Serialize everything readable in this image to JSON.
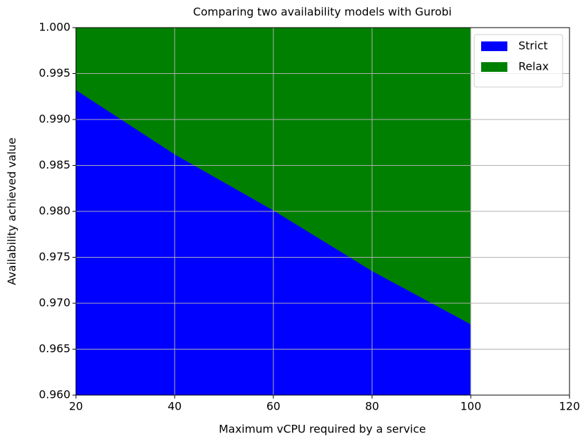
{
  "chart_data": {
    "type": "area",
    "title": "Comparing two availability models with Gurobi",
    "xlabel": "Maximum vCPU required by a service",
    "ylabel": "Availability achieved value",
    "x": [
      20,
      40,
      60,
      80,
      100
    ],
    "series": [
      {
        "name": "Strict",
        "color": "#0000ff",
        "values": [
          0.9932,
          0.9862,
          0.9801,
          0.9735,
          0.9677
        ]
      },
      {
        "name": "Relax",
        "color": "#008000",
        "values": [
          1.0,
          1.0,
          1.0,
          1.0,
          1.0
        ]
      }
    ],
    "xlim": [
      20,
      120
    ],
    "xticks": [
      20,
      40,
      60,
      80,
      100,
      120
    ],
    "ylim": [
      0.96,
      1.0
    ],
    "yticks": [
      {
        "value": 0.96,
        "label": "0.960"
      },
      {
        "value": 0.965,
        "label": "0.965"
      },
      {
        "value": 0.97,
        "label": "0.970"
      },
      {
        "value": 0.975,
        "label": "0.975"
      },
      {
        "value": 0.98,
        "label": "0.980"
      },
      {
        "value": 0.985,
        "label": "0.985"
      },
      {
        "value": 0.99,
        "label": "0.990"
      },
      {
        "value": 0.995,
        "label": "0.995"
      },
      {
        "value": 1.0,
        "label": "1.000"
      }
    ],
    "grid": true,
    "legend": "upper right"
  }
}
